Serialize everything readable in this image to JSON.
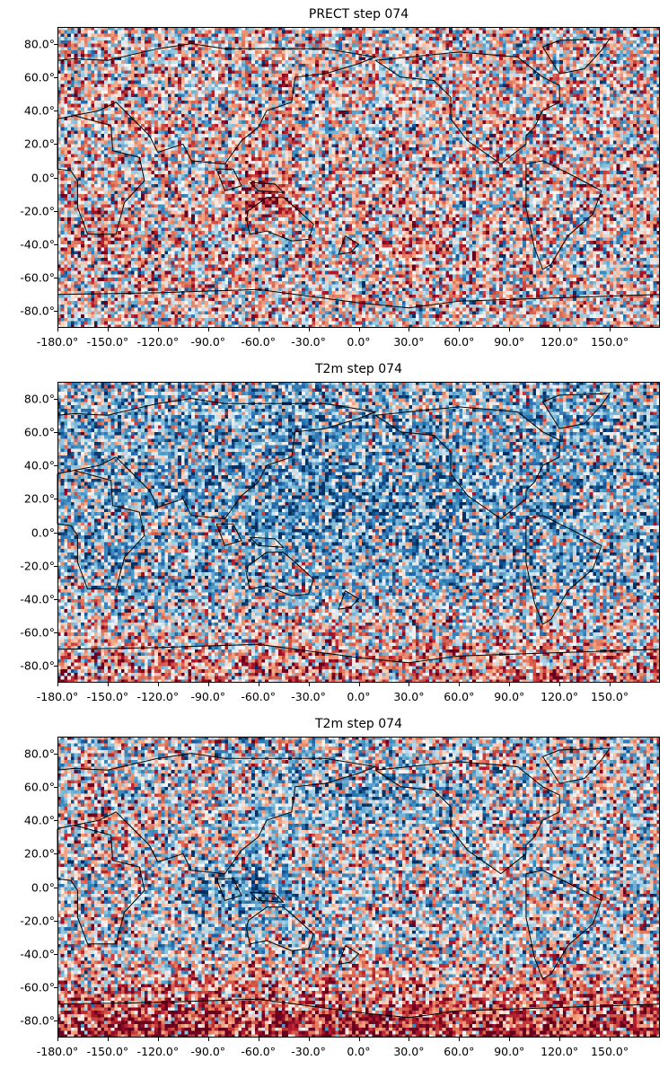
{
  "chart_data": [
    {
      "type": "heatmap",
      "title": "PRECT step 074",
      "xticks": [
        "-180.0°",
        "-150.0°",
        "-120.0°",
        "-90.0°",
        "-60.0°",
        "-30.0°",
        "0.0°",
        "30.0°",
        "60.0°",
        "90.0°",
        "120.0°",
        "150.0°"
      ],
      "xtick_values": [
        -180,
        -150,
        -120,
        -90,
        -60,
        -30,
        0,
        30,
        60,
        90,
        120,
        150
      ],
      "yticks": [
        "80.0°",
        "60.0°",
        "40.0°",
        "20.0°",
        "0.0°",
        "-20.0°",
        "-40.0°",
        "-60.0°",
        "-80.0°"
      ],
      "ytick_values": [
        80,
        60,
        40,
        20,
        0,
        -20,
        -40,
        -60,
        -80
      ],
      "xlim": [
        -180,
        180
      ],
      "ylim": [
        -90,
        90
      ],
      "colormap": "RdBu_r",
      "coastlines": true,
      "central_longitude": 180,
      "pattern": "noisy anomaly field; red clusters over Maritime Continent, western Pacific and south-east Atlantic"
    },
    {
      "type": "heatmap",
      "title": "T2m step 074",
      "xticks": [
        "-180.0°",
        "-150.0°",
        "-120.0°",
        "-90.0°",
        "-60.0°",
        "-30.0°",
        "0.0°",
        "30.0°",
        "60.0°",
        "90.0°",
        "120.0°",
        "150.0°"
      ],
      "xtick_values": [
        -180,
        -150,
        -120,
        -90,
        -60,
        -30,
        0,
        30,
        60,
        90,
        120,
        150
      ],
      "yticks": [
        "80.0°",
        "60.0°",
        "40.0°",
        "20.0°",
        "0.0°",
        "-20.0°",
        "-40.0°",
        "-60.0°",
        "-80.0°"
      ],
      "ytick_values": [
        80,
        60,
        40,
        20,
        0,
        -20,
        -40,
        -60,
        -80
      ],
      "xlim": [
        -180,
        180
      ],
      "ylim": [
        -90,
        90
      ],
      "colormap": "RdBu_r",
      "coastlines": true,
      "central_longitude": 180,
      "pattern": "noisy field; blue dominant in tropics and northern hemisphere, red in southern mid-latitudes"
    },
    {
      "type": "heatmap",
      "title": "T2m step 074",
      "xticks": [
        "-180.0°",
        "-150.0°",
        "-120.0°",
        "-90.0°",
        "-60.0°",
        "-30.0°",
        "0.0°",
        "30.0°",
        "60.0°",
        "90.0°",
        "120.0°",
        "150.0°"
      ],
      "xtick_values": [
        -180,
        -150,
        -120,
        -90,
        -60,
        -30,
        0,
        30,
        60,
        90,
        120,
        150
      ],
      "yticks": [
        "80.0°",
        "60.0°",
        "40.0°",
        "20.0°",
        "0.0°",
        "-20.0°",
        "-40.0°",
        "-60.0°",
        "-80.0°"
      ],
      "ytick_values": [
        80,
        60,
        40,
        20,
        0,
        -20,
        -40,
        -60,
        -80
      ],
      "xlim": [
        -180,
        180
      ],
      "ylim": [
        -90,
        90
      ],
      "colormap": "RdBu_r",
      "coastlines": true,
      "central_longitude": 180,
      "pattern": "noisy field; strong blue over Maritime Continent, red band in Southern Ocean"
    }
  ]
}
